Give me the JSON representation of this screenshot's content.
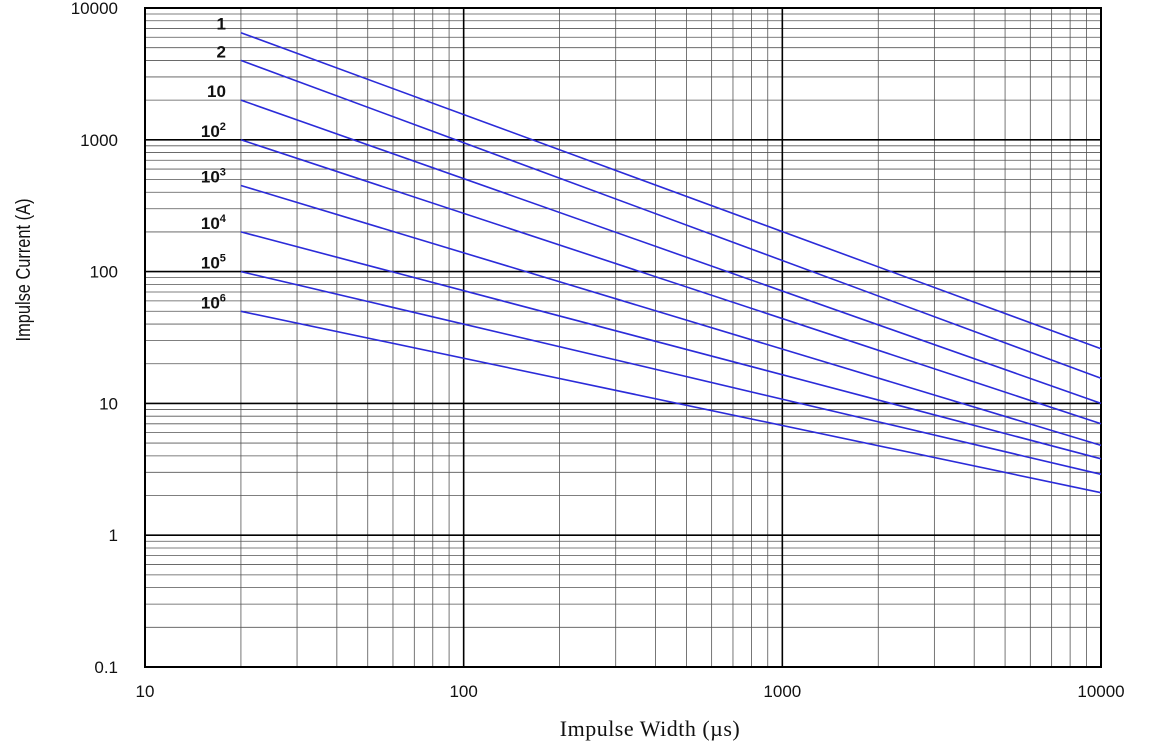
{
  "chart_data": {
    "type": "line",
    "x_scale": "log",
    "y_scale": "log",
    "xlim": [
      10,
      10000
    ],
    "ylim": [
      0.1,
      10000
    ],
    "xlabel": "Impulse Width (µs)",
    "ylabel": "Impulse Current (A)",
    "x_ticks": [
      "10",
      "100",
      "1000",
      "10000"
    ],
    "y_ticks": [
      "0.1",
      "1",
      "10",
      "100",
      "1000",
      "10000"
    ],
    "grid": true,
    "series_color": "#2b2bd9",
    "series": [
      {
        "name": "1",
        "base": "1",
        "exp": "",
        "x": [
          20,
          10000
        ],
        "y": [
          6500,
          26
        ]
      },
      {
        "name": "2",
        "base": "2",
        "exp": "",
        "x": [
          20,
          10000
        ],
        "y": [
          4000,
          15.5
        ]
      },
      {
        "name": "10",
        "base": "10",
        "exp": "",
        "x": [
          20,
          10000
        ],
        "y": [
          2000,
          10
        ]
      },
      {
        "name": "10^2",
        "base": "10",
        "exp": "2",
        "x": [
          20,
          10000
        ],
        "y": [
          1000,
          7
        ]
      },
      {
        "name": "10^3",
        "base": "10",
        "exp": "3",
        "x": [
          20,
          10000
        ],
        "y": [
          450,
          4.8
        ]
      },
      {
        "name": "10^4",
        "base": "10",
        "exp": "4",
        "x": [
          20,
          10000
        ],
        "y": [
          200,
          3.8
        ]
      },
      {
        "name": "10^5",
        "base": "10",
        "exp": "5",
        "x": [
          20,
          10000
        ],
        "y": [
          100,
          2.9
        ]
      },
      {
        "name": "10^6",
        "base": "10",
        "exp": "6",
        "x": [
          20,
          10000
        ],
        "y": [
          50,
          2.1
        ]
      }
    ]
  }
}
